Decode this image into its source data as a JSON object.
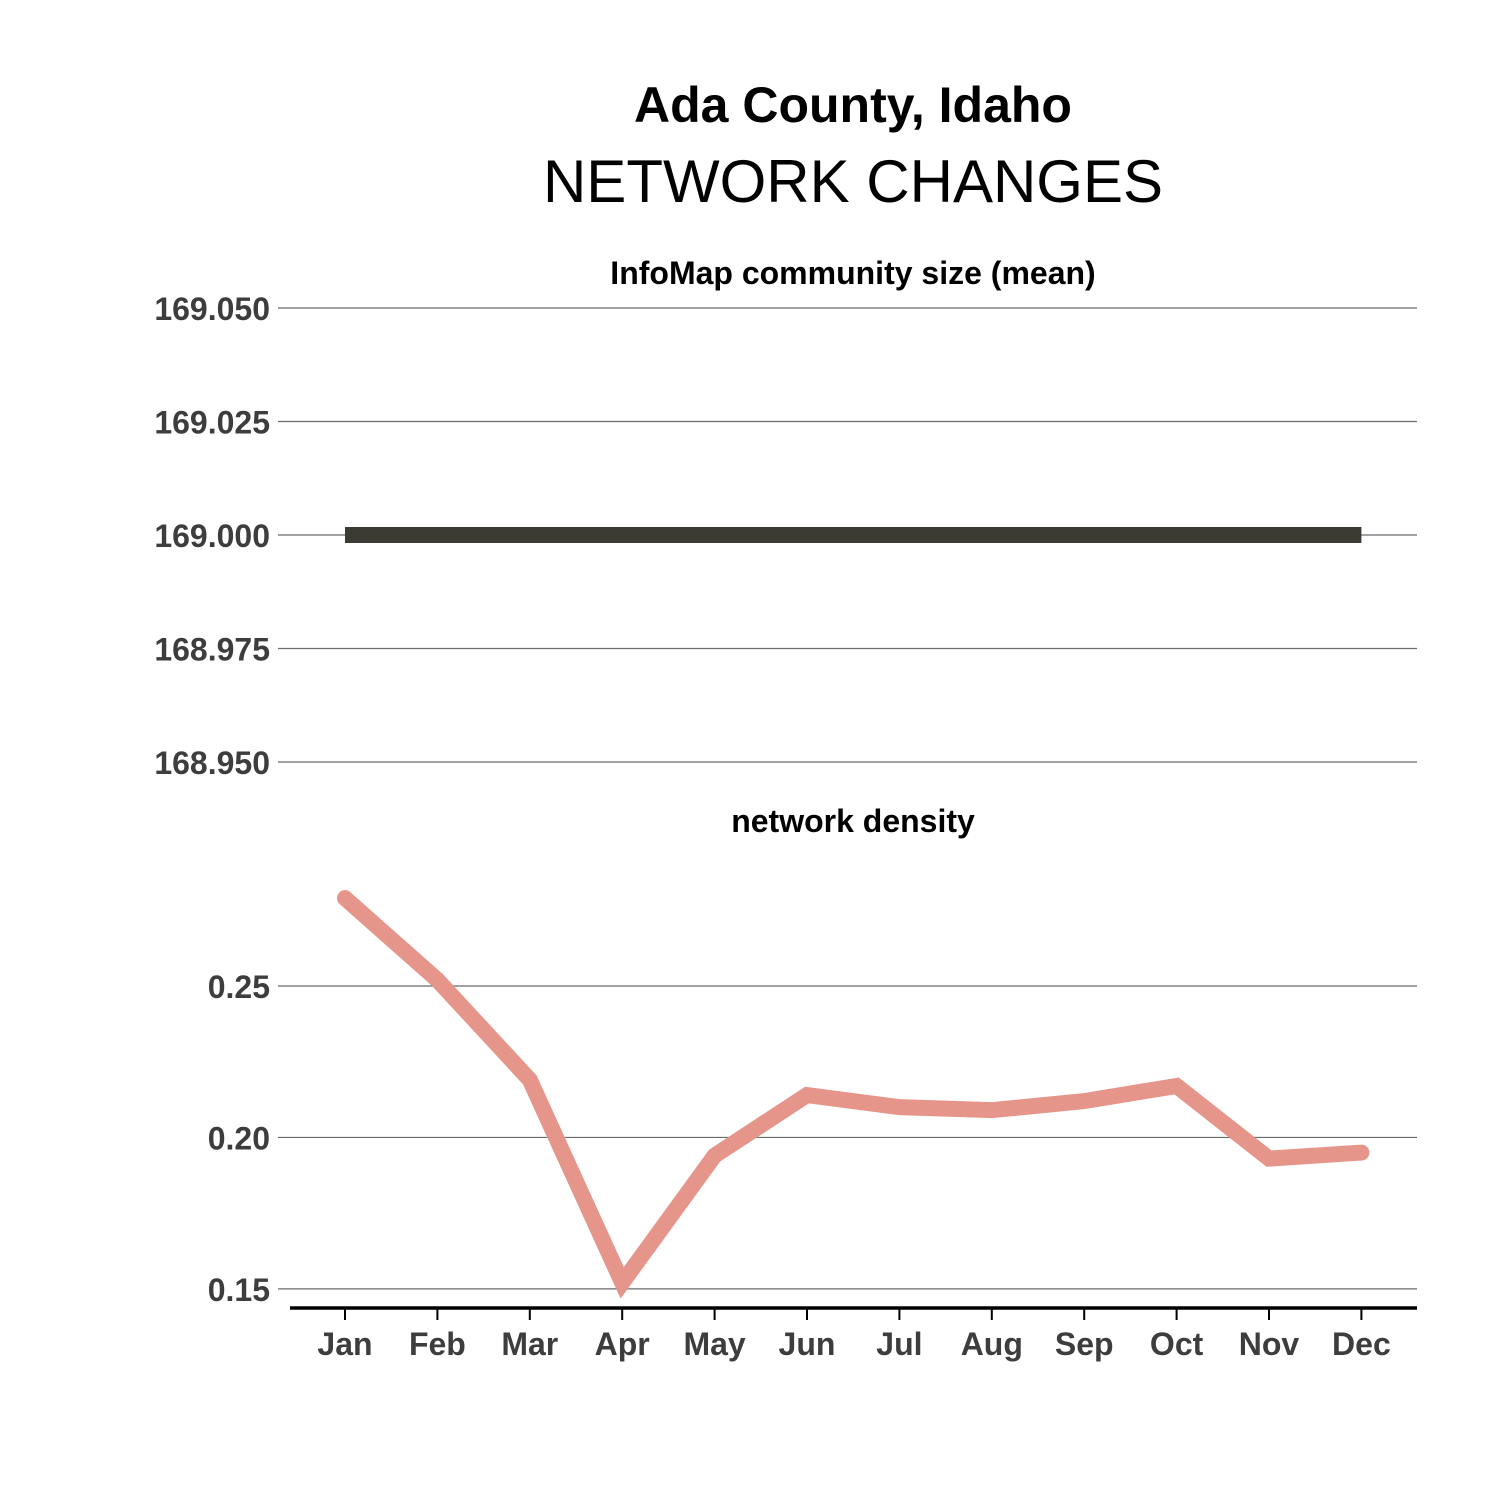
{
  "title": "Ada County, Idaho",
  "subtitle": "NETWORK CHANGES",
  "chart_data": [
    {
      "type": "line",
      "title": "InfoMap community size (mean)",
      "x": [
        "Jan",
        "Feb",
        "Mar",
        "Apr",
        "May",
        "Jun",
        "Jul",
        "Aug",
        "Sep",
        "Oct",
        "Nov",
        "Dec"
      ],
      "values": [
        169,
        169,
        169,
        169,
        169,
        169,
        169,
        169,
        169,
        169,
        169,
        169
      ],
      "ylim": [
        168.95,
        169.05
      ],
      "yticks": [
        168.95,
        168.975,
        169.0,
        169.025,
        169.05
      ],
      "ytick_labels": [
        "168.950",
        "168.975",
        "169.000",
        "169.025",
        "169.050"
      ],
      "color": "#3b3a33",
      "grid": true
    },
    {
      "type": "line",
      "title": "network density",
      "x": [
        "Jan",
        "Feb",
        "Mar",
        "Apr",
        "May",
        "Jun",
        "Jul",
        "Aug",
        "Sep",
        "Oct",
        "Nov",
        "Dec"
      ],
      "values": [
        0.279,
        0.252,
        0.219,
        0.152,
        0.194,
        0.214,
        0.21,
        0.209,
        0.212,
        0.217,
        0.193,
        0.195
      ],
      "ylim": [
        0.145,
        0.285
      ],
      "yticks": [
        0.15,
        0.2,
        0.25
      ],
      "ytick_labels": [
        "0.15",
        "0.20",
        "0.25"
      ],
      "color": "#e6958a",
      "grid": true
    }
  ]
}
